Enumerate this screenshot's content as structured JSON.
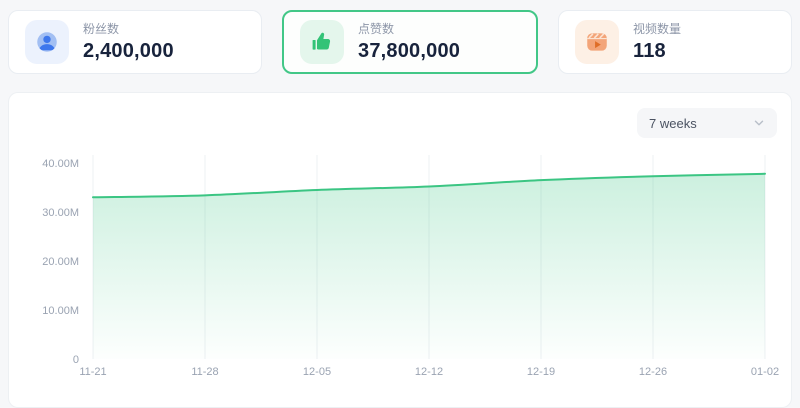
{
  "stats": [
    {
      "label": "粉丝数",
      "value": "2,400,000",
      "icon": "user-icon",
      "icon_bg": "#ecf2fd",
      "accent": "#3e77ec",
      "selected": false
    },
    {
      "label": "点赞数",
      "value": "37,800,000",
      "icon": "thumbs-up-icon",
      "icon_bg": "#e4f6ec",
      "accent": "#33c377",
      "selected": true,
      "selected_border": "#42c787"
    },
    {
      "label": "视频数量",
      "value": "118",
      "icon": "video-icon",
      "icon_bg": "#fdf0e5",
      "accent": "#ef8a3c",
      "selected": false
    }
  ],
  "chart_panel": {
    "range_selector": {
      "value": "7 weeks"
    }
  },
  "chart_data": {
    "type": "area",
    "title": "",
    "x": [
      "11-21",
      "11-28",
      "12-05",
      "12-12",
      "12-19",
      "12-26",
      "01-02"
    ],
    "series": [
      {
        "name": "点赞数",
        "values": [
          33000000,
          33400000,
          34500000,
          35200000,
          36500000,
          37300000,
          37800000
        ]
      }
    ],
    "ylim": [
      0,
      40000000
    ],
    "yticks": [
      {
        "value": 0,
        "label": "0"
      },
      {
        "value": 10000000,
        "label": "10.00M"
      },
      {
        "value": 20000000,
        "label": "20.00M"
      },
      {
        "value": 30000000,
        "label": "30.00M"
      },
      {
        "value": 40000000,
        "label": "40.00M"
      }
    ],
    "grid": "vertical-only",
    "legend": "none",
    "smooth": true,
    "line_color": "#3bc583",
    "area_top_color": "rgba(59,197,131,0.26)",
    "area_bottom_color": "rgba(59,197,131,0.01)",
    "grid_color": "#edf0f3",
    "axis_label_color": "#9aa3b2"
  }
}
